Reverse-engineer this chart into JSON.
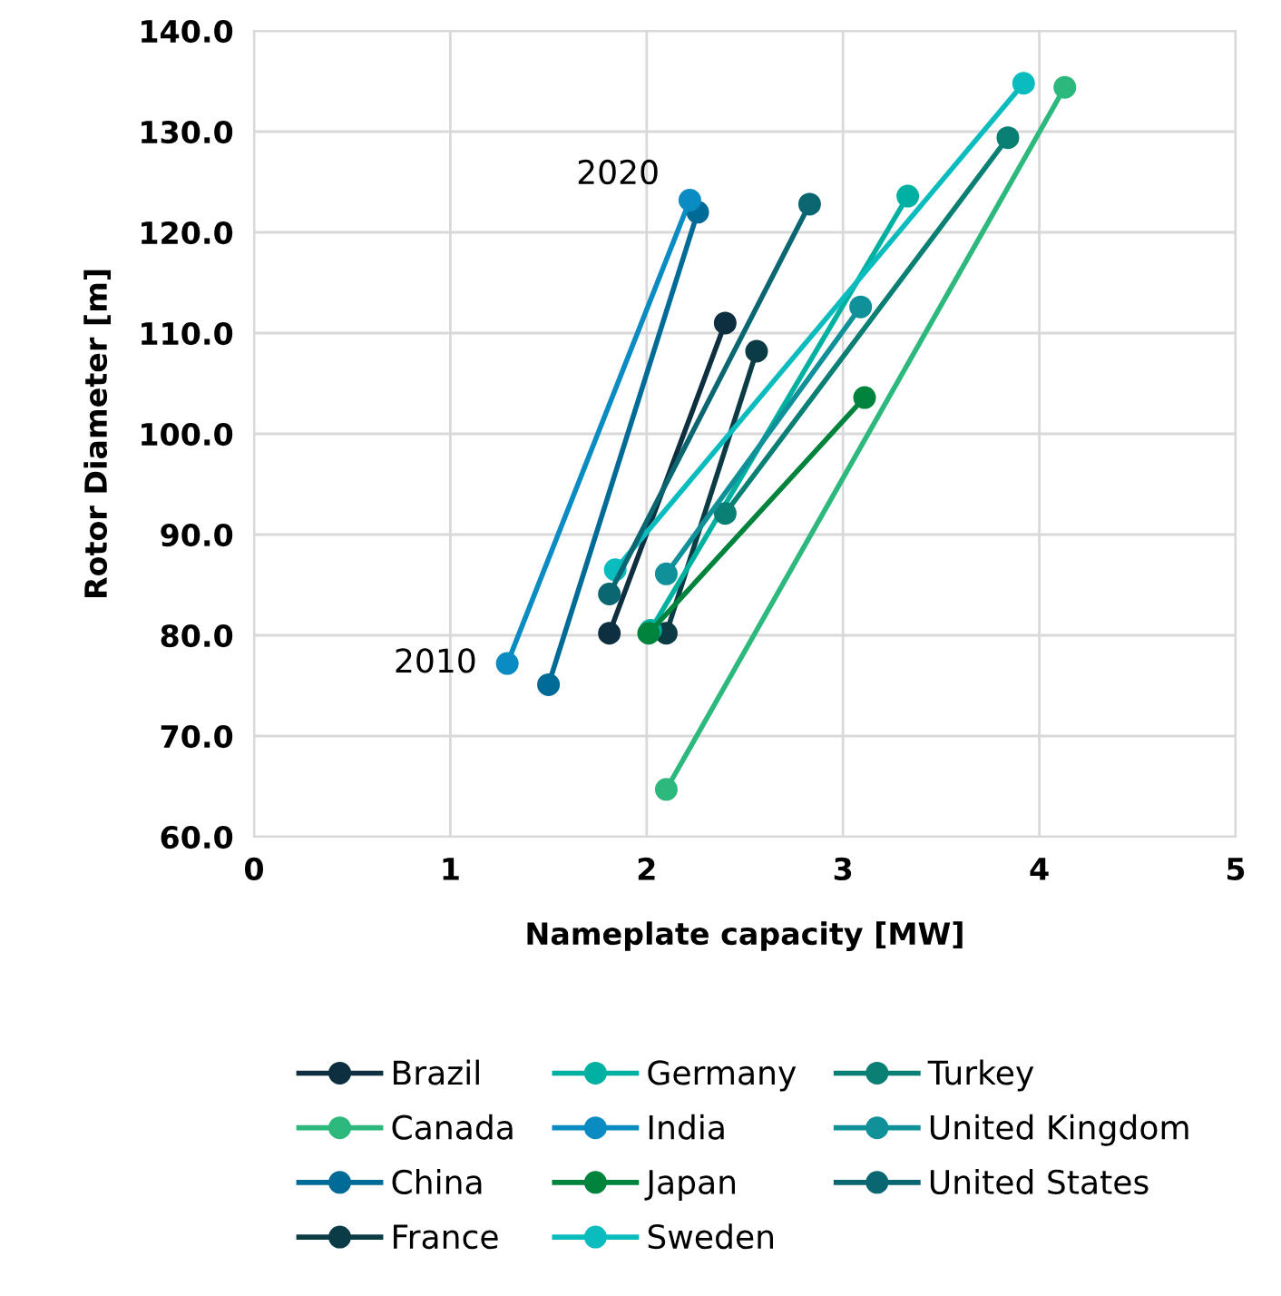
{
  "chart_data": {
    "type": "line",
    "xlabel": "Nameplate capacity [MW]",
    "ylabel": "Rotor Diameter [m]",
    "xlim": [
      0,
      5
    ],
    "xticks": [
      0,
      1,
      2,
      3,
      4,
      5
    ],
    "ylim": [
      60,
      140
    ],
    "yticks": [
      {
        "value": 60,
        "label": "60.0"
      },
      {
        "value": 70,
        "label": "70.0"
      },
      {
        "value": 80,
        "label": "80.0"
      },
      {
        "value": 90,
        "label": "90.0"
      },
      {
        "value": 100,
        "label": "100.0"
      },
      {
        "value": 110,
        "label": "110.0"
      },
      {
        "value": 120,
        "label": "120.0"
      },
      {
        "value": 130,
        "label": "130.0"
      },
      {
        "value": 140,
        "label": "140.0"
      }
    ],
    "grid": true,
    "legend": "bottom",
    "marker": "circle",
    "line_style": "solid",
    "series": [
      {
        "name": "Brazil",
        "color": "#0e2f3f",
        "x": [
          1.81,
          2.4
        ],
        "values": [
          80.2,
          111.0
        ]
      },
      {
        "name": "Canada",
        "color": "#2db87d",
        "x": [
          2.1,
          4.13
        ],
        "values": [
          64.7,
          134.4
        ]
      },
      {
        "name": "China",
        "color": "#006b96",
        "x": [
          1.5,
          2.26
        ],
        "values": [
          75.1,
          122.0
        ]
      },
      {
        "name": "France",
        "color": "#0b3c46",
        "x": [
          2.1,
          2.56
        ],
        "values": [
          80.2,
          108.2
        ]
      },
      {
        "name": "Germany",
        "color": "#00b0a0",
        "x": [
          2.02,
          3.33
        ],
        "values": [
          80.5,
          123.6
        ]
      },
      {
        "name": "India",
        "color": "#0a8cc3",
        "x": [
          1.29,
          2.22
        ],
        "values": [
          77.2,
          123.2
        ]
      },
      {
        "name": "Japan",
        "color": "#00843d",
        "x": [
          2.01,
          3.11
        ],
        "values": [
          80.2,
          103.6
        ]
      },
      {
        "name": "Sweden",
        "color": "#0bbcbf",
        "x": [
          1.84,
          3.92
        ],
        "values": [
          86.5,
          134.8
        ]
      },
      {
        "name": "Turkey",
        "color": "#0a7f74",
        "x": [
          2.4,
          3.84
        ],
        "values": [
          92.1,
          129.4
        ]
      },
      {
        "name": "United Kingdom",
        "color": "#10919a",
        "x": [
          2.1,
          3.09
        ],
        "values": [
          86.1,
          112.6
        ]
      },
      {
        "name": "United States",
        "color": "#0a6670",
        "x": [
          1.81,
          2.83
        ],
        "values": [
          84.1,
          122.8
        ]
      }
    ],
    "annotations": [
      {
        "text": "2010",
        "x": 1.29,
        "y": 77.2
      },
      {
        "text": "2020",
        "x": 2.22,
        "y": 123.2
      }
    ]
  }
}
